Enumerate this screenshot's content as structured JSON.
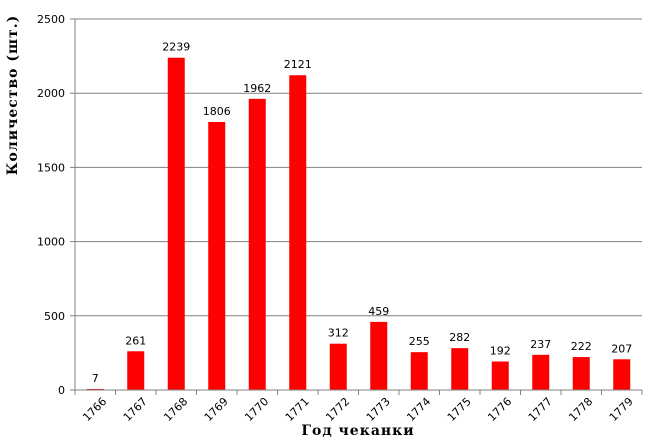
{
  "chart_data": {
    "type": "bar",
    "title": "",
    "xlabel": "Год чеканки",
    "ylabel": "Количество (шт.)",
    "categories": [
      "1766",
      "1767",
      "1768",
      "1769",
      "1770",
      "1771",
      "1772",
      "1773",
      "1774",
      "1775",
      "1776",
      "1777",
      "1778",
      "1779"
    ],
    "values": [
      7,
      261,
      2239,
      1806,
      1962,
      2121,
      312,
      459,
      255,
      282,
      192,
      237,
      222,
      207
    ],
    "ylim": [
      0,
      2500
    ],
    "yticks": [
      0,
      500,
      1000,
      1500,
      2000,
      2500
    ],
    "grid": true,
    "legend": "none",
    "bar_color": "#ff0000"
  }
}
